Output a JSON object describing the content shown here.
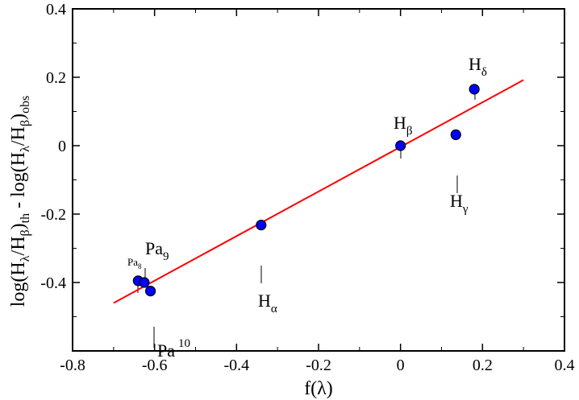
{
  "chart_data": {
    "type": "scatter",
    "title": "",
    "xlabel": "f(λ)",
    "ylabel": "log(Hλ/Hβ)th - log(Hλ/Hβ)obs",
    "xlim": [
      -0.8,
      0.4
    ],
    "ylim": [
      -0.6,
      0.4
    ],
    "xticks": [
      "-0.8",
      "-0.6",
      "-0.4",
      "-0.2",
      "0",
      "0.2",
      "0.4"
    ],
    "yticks": [
      "0.4",
      "0.2",
      "0",
      "-0.2",
      "-0.4"
    ],
    "xticks_values": [
      -0.8,
      -0.6,
      -0.4,
      -0.2,
      0,
      0.2,
      0.4
    ],
    "yticks_values": [
      0.4,
      0.2,
      0,
      -0.2,
      -0.4
    ],
    "grid": false,
    "colors": {
      "points": "#0000ff",
      "fit": "#ff0000"
    },
    "points": [
      {
        "x": -0.64,
        "y": -0.395
      },
      {
        "x": -0.625,
        "y": -0.4
      },
      {
        "x": -0.61,
        "y": -0.425
      },
      {
        "x": -0.34,
        "y": -0.232
      },
      {
        "x": 0.0,
        "y": 0.0
      },
      {
        "x": 0.135,
        "y": 0.032
      },
      {
        "x": 0.18,
        "y": 0.165
      }
    ],
    "fit_line": {
      "x": [
        -0.7,
        0.3
      ],
      "y": [
        -0.46,
        0.192
      ]
    },
    "line_labels": [
      {
        "name": "Hα",
        "base": "H",
        "sub": "α"
      },
      {
        "name": "Hβ",
        "base": "H",
        "sub": "β"
      },
      {
        "name": "Hγ",
        "base": "H",
        "sub": "γ"
      },
      {
        "name": "Hδ",
        "base": "H",
        "sub": "δ"
      },
      {
        "name": "Pa9",
        "base": "Pa",
        "sub": "9"
      },
      {
        "name": "Pa10",
        "base": "Pa",
        "sub": "10"
      },
      {
        "name": "Pa8",
        "base": "Pa",
        "sub": "8"
      }
    ]
  }
}
